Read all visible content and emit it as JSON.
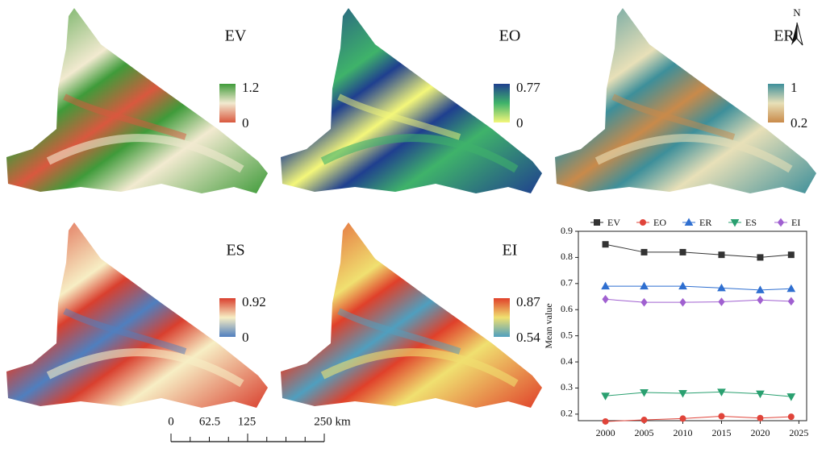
{
  "maps": [
    {
      "label": "EV",
      "legend_max": "1.2",
      "legend_min": "0",
      "colors": [
        "#3f9b3a",
        "#f2ead0",
        "#d9583e"
      ]
    },
    {
      "label": "EO",
      "legend_max": "0.77",
      "legend_min": "0",
      "colors": [
        "#1f3f8f",
        "#3fb36a",
        "#f4f77a"
      ]
    },
    {
      "label": "ER",
      "legend_max": "1",
      "legend_min": "0.2",
      "colors": [
        "#3d8f9a",
        "#e8e0b8",
        "#c98a4a"
      ]
    },
    {
      "label": "ES",
      "legend_max": "0.92",
      "legend_min": "0",
      "colors": [
        "#d93f2e",
        "#f7eec4",
        "#4f7fbf"
      ]
    },
    {
      "label": "EI",
      "legend_max": "0.87",
      "legend_min": "0.54",
      "colors": [
        "#e0402a",
        "#f0e070",
        "#4f9fbf"
      ]
    }
  ],
  "scale_bar": {
    "labels": [
      "0",
      "62.5",
      "125",
      "250 km"
    ]
  },
  "north": "N",
  "chart_data": {
    "type": "line",
    "y_label": "Mean value",
    "x": [
      2000,
      2005,
      2010,
      2015,
      2020,
      2024
    ],
    "xlim": [
      1996.5,
      2026
    ],
    "xticks": [
      2000,
      2005,
      2010,
      2015,
      2020,
      2025
    ],
    "ylim": [
      0.175,
      0.9
    ],
    "yticks": [
      0.2,
      0.3,
      0.4,
      0.5,
      0.6,
      0.7,
      0.8,
      0.9
    ],
    "series": [
      {
        "name": "EV",
        "color": "#333333",
        "marker": "square",
        "values": [
          0.85,
          0.82,
          0.82,
          0.81,
          0.8,
          0.81
        ]
      },
      {
        "name": "EO",
        "color": "#e0443a",
        "marker": "circle",
        "values": [
          0.172,
          0.178,
          0.183,
          0.192,
          0.185,
          0.19
        ]
      },
      {
        "name": "ER",
        "color": "#2f6fd0",
        "marker": "triangle-up",
        "values": [
          0.69,
          0.69,
          0.69,
          0.683,
          0.675,
          0.68
        ]
      },
      {
        "name": "ES",
        "color": "#2aa070",
        "marker": "triangle-down",
        "values": [
          0.27,
          0.283,
          0.28,
          0.285,
          0.278,
          0.267
        ]
      },
      {
        "name": "EI",
        "color": "#a060d0",
        "marker": "diamond",
        "values": [
          0.64,
          0.628,
          0.628,
          0.63,
          0.637,
          0.632
        ]
      }
    ]
  }
}
